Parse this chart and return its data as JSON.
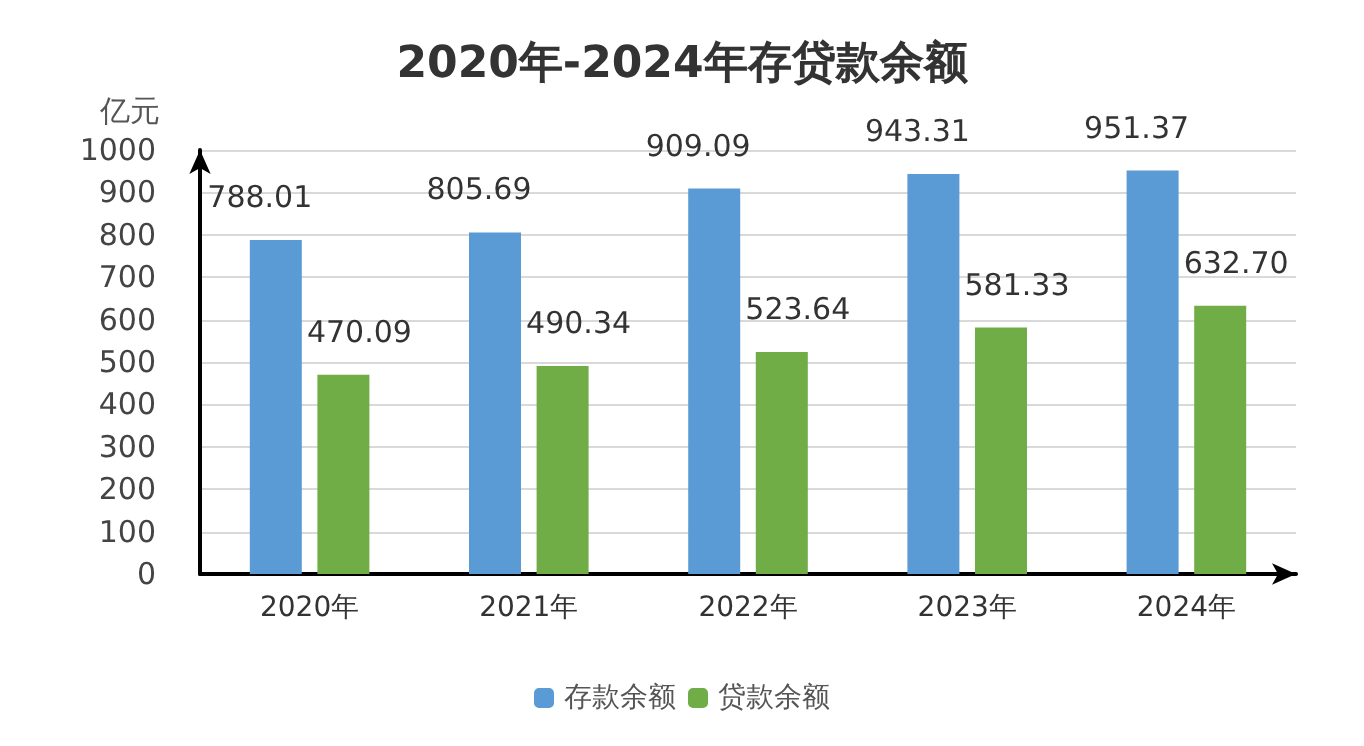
{
  "chart_data": {
    "type": "bar",
    "title": "2020年-2024年存贷款余额",
    "ylabel": "亿元",
    "categories": [
      "2020年",
      "2021年",
      "2022年",
      "2023年",
      "2024年"
    ],
    "series": [
      {
        "name": "存款余额",
        "color": "#5b9bd5",
        "values": [
          788.01,
          805.69,
          909.09,
          943.31,
          951.37
        ],
        "value_labels": [
          "788.01",
          "805.69",
          "909.09",
          "943.31",
          "951.37"
        ]
      },
      {
        "name": "贷款余额",
        "color": "#70ad47",
        "values": [
          470.09,
          490.34,
          523.64,
          581.33,
          632.7
        ],
        "value_labels": [
          "470.09",
          "490.34",
          "523.64",
          "581.33",
          "632.70"
        ]
      }
    ],
    "ylim": [
      0,
      1000
    ],
    "yticks": [
      0,
      100,
      200,
      300,
      400,
      500,
      600,
      700,
      800,
      900,
      1000
    ],
    "grid": "y",
    "legend": "bottom"
  }
}
